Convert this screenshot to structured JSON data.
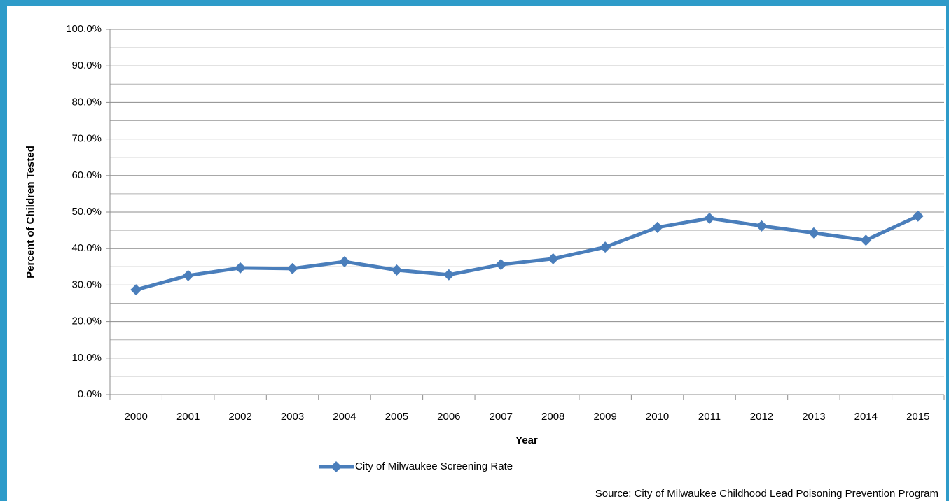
{
  "chart_data": {
    "type": "line",
    "y_axis_label": "Percent of Children Tested",
    "x_axis_label": "Year",
    "source": "Source: City of Milwaukee Childhood Lead Poisoning Prevention Program",
    "categories": [
      "2000",
      "2001",
      "2002",
      "2003",
      "2004",
      "2005",
      "2006",
      "2007",
      "2008",
      "2009",
      "2010",
      "2011",
      "2012",
      "2013",
      "2014",
      "2015"
    ],
    "series": [
      {
        "name": "City of Milwaukee Screening Rate",
        "color": "#4a7ebb",
        "values": [
          28.7,
          32.6,
          34.7,
          34.5,
          36.4,
          34.1,
          32.8,
          35.6,
          37.2,
          40.4,
          45.8,
          48.3,
          46.2,
          44.3,
          42.3,
          48.9
        ]
      }
    ],
    "ylim": [
      0,
      100
    ],
    "yticks": [
      {
        "value": 0,
        "label": "0.0%"
      },
      {
        "value": 10,
        "label": "10.0%"
      },
      {
        "value": 20,
        "label": "20.0%"
      },
      {
        "value": 30,
        "label": "30.0%"
      },
      {
        "value": 40,
        "label": "40.0%"
      },
      {
        "value": 50,
        "label": "50.0%"
      },
      {
        "value": 60,
        "label": "60.0%"
      },
      {
        "value": 70,
        "label": "70.0%"
      },
      {
        "value": 80,
        "label": "80.0%"
      },
      {
        "value": 90,
        "label": "90.0%"
      },
      {
        "value": 100,
        "label": "100.0%"
      }
    ],
    "yminor": [
      5,
      15,
      25,
      35,
      45,
      55,
      65,
      75,
      85,
      95
    ],
    "grid": true,
    "legend": "bottom"
  }
}
